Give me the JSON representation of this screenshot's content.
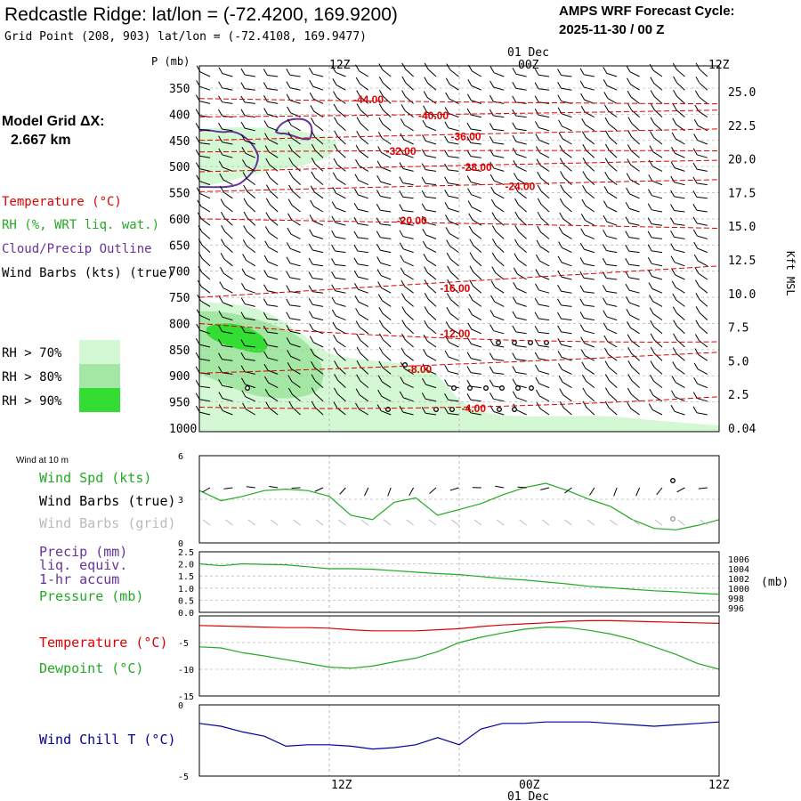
{
  "header": {
    "title": "Redcastle Ridge:  lat/lon = (-72.4200, 169.9200)",
    "subtitle": "Grid Point (208, 903) lat/lon = (-72.4108, 169.9477)",
    "cycle_line1": "AMPS WRF Forecast Cycle:",
    "cycle_line2": "2025-11-30 / 00  Z"
  },
  "time_axis": {
    "top_labels": [
      "12Z",
      "00Z",
      "12Z"
    ],
    "date_label": "01 Dec",
    "bottom_labels": [
      "12Z",
      "00Z",
      "12Z"
    ]
  },
  "legend": {
    "grid_label": "Model Grid ΔX:",
    "grid_value": "2.667 km",
    "temperature": "Temperature (°C)",
    "rh": "RH (%, WRT liq. wat.)",
    "cloud": "Cloud/Precip Outline",
    "wind": "Wind Barbs (kts) (true)",
    "rh70": "RH > 70%",
    "rh80": "RH > 80%",
    "rh90": "RH > 90%",
    "colors": {
      "temperature": "#dd0000",
      "rh": "#22aa22",
      "cloud": "#663399",
      "rh70": "#d4f7d4",
      "rh80": "#a4e6a4",
      "rh90": "#33dd33"
    }
  },
  "chart_data": [
    {
      "type": "contour",
      "name": "upper",
      "ylabel": "P (mb)",
      "right_label": "Kft MSL",
      "y_ticks_left": [
        "350",
        "400",
        "450",
        "500",
        "550",
        "600",
        "650",
        "700",
        "750",
        "800",
        "850",
        "900",
        "950",
        "1000"
      ],
      "y_ticks_right": [
        "25.0",
        "22.5",
        "20.0",
        "17.5",
        "15.0",
        "12.5",
        "10.0",
        "7.5",
        "5.0",
        "2.5",
        "0.04"
      ],
      "temperature_labels": [
        "-44.00",
        "-40.00",
        "-36.00",
        "-32.00",
        "-28.00",
        "-24.00",
        "-20.00",
        "-16.00",
        "-12.00",
        "-8.00",
        "-4.00"
      ],
      "temperature_contours": [
        {
          "label": "-44.00",
          "x": [
            0,
            24,
            48
          ],
          "p": [
            370,
            378,
            380
          ]
        },
        {
          "label": "-40.00",
          "x": [
            0,
            24,
            48
          ],
          "p": [
            405,
            401,
            392
          ]
        },
        {
          "label": "-36.00",
          "x": [
            0,
            24,
            48
          ],
          "p": [
            450,
            438,
            428
          ]
        },
        {
          "label": "-32.00",
          "x": [
            0,
            24,
            48
          ],
          "p": [
            472,
            468,
            470
          ]
        },
        {
          "label": "-28.00",
          "x": [
            0,
            24,
            48
          ],
          "p": [
            510,
            497,
            488
          ]
        },
        {
          "label": "-24.00",
          "x": [
            0,
            24,
            48
          ],
          "p": [
            548,
            535,
            525
          ]
        },
        {
          "label": "-20.00",
          "x": [
            0,
            24,
            48
          ],
          "p": [
            600,
            608,
            618
          ]
        },
        {
          "label": "-16.00",
          "x": [
            0,
            24,
            48
          ],
          "p": [
            750,
            720,
            690
          ]
        },
        {
          "label": "-12.00",
          "x": [
            0,
            24,
            48
          ],
          "p": [
            800,
            840,
            835
          ]
        },
        {
          "label": "-8.00",
          "x": [
            0,
            24,
            48
          ],
          "p": [
            895,
            880,
            855
          ]
        },
        {
          "label": "-4.00",
          "x": [
            0,
            24,
            48
          ],
          "p": [
            960,
            970,
            940
          ]
        }
      ]
    },
    {
      "type": "line",
      "name": "wind",
      "title": "Wind at 10 m",
      "series_labels": [
        "Wind Spd (kts)",
        "Wind Barbs (true)",
        "Wind Barbs (grid)"
      ],
      "y_ticks": [
        "6",
        "3",
        "0"
      ],
      "ylim": [
        0,
        6
      ],
      "x": [
        0,
        2,
        4,
        6,
        8,
        10,
        12,
        14,
        16,
        18,
        20,
        22,
        24,
        26,
        28,
        30,
        32,
        34,
        36,
        38,
        40,
        42,
        44,
        46,
        48
      ],
      "series": [
        {
          "name": "Wind Spd (kts)",
          "values": [
            3.6,
            2.9,
            3.2,
            3.6,
            3.7,
            3.6,
            3.2,
            1.9,
            1.6,
            2.8,
            3.1,
            1.9,
            2.3,
            2.7,
            3.3,
            3.8,
            4.1,
            3.6,
            3.0,
            2.5,
            1.6,
            1.0,
            0.9,
            1.2,
            1.6
          ]
        }
      ]
    },
    {
      "type": "line",
      "name": "precip",
      "series_labels": [
        "Precip (mm)",
        "liq. equiv.",
        "1-hr accum",
        "Pressure (mb)"
      ],
      "y_ticks": [
        "2.5",
        "2.0",
        "1.5",
        "1.0",
        "0.5",
        "0.0"
      ],
      "y_ticks_right": [
        "1006",
        "1004",
        "1002",
        "1000",
        "998",
        "996"
      ],
      "right_label": "(mb)",
      "ylim": [
        0,
        2.5
      ],
      "x": [
        0,
        2,
        4,
        6,
        8,
        10,
        12,
        14,
        16,
        18,
        20,
        22,
        24,
        26,
        28,
        30,
        32,
        34,
        36,
        38,
        40,
        42,
        44,
        46,
        48
      ],
      "series": [
        {
          "name": "Pressure (mb)",
          "values": [
            1005.0,
            1004.6,
            1005.0,
            1004.9,
            1004.8,
            1004.4,
            1004.0,
            1004.0,
            1003.9,
            1003.6,
            1003.3,
            1003.0,
            1002.8,
            1002.4,
            1002.0,
            1001.7,
            1001.3,
            1000.9,
            1000.4,
            1000.1,
            999.8,
            999.5,
            999.3,
            999.0,
            998.8
          ]
        }
      ]
    },
    {
      "type": "line",
      "name": "temperature",
      "series_labels": [
        "Temperature (°C)",
        "Dewpoint (°C)"
      ],
      "y_ticks": [
        "-5",
        "-10",
        "-15"
      ],
      "ylim": [
        -15,
        0
      ],
      "x": [
        0,
        2,
        4,
        6,
        8,
        10,
        12,
        14,
        16,
        18,
        20,
        22,
        24,
        26,
        28,
        30,
        32,
        34,
        36,
        38,
        40,
        42,
        44,
        46,
        48
      ],
      "series": [
        {
          "name": "Temperature (°C)",
          "values": [
            -1.8,
            -1.9,
            -2.0,
            -2.1,
            -2.2,
            -2.2,
            -2.3,
            -2.6,
            -2.8,
            -2.8,
            -2.8,
            -2.6,
            -2.4,
            -2.0,
            -1.7,
            -1.5,
            -1.3,
            -1.0,
            -0.9,
            -0.9,
            -1.0,
            -1.1,
            -1.2,
            -1.3,
            -1.4
          ]
        },
        {
          "name": "Dewpoint (°C)",
          "values": [
            -5.8,
            -6.0,
            -6.9,
            -7.5,
            -8.2,
            -8.9,
            -9.6,
            -9.8,
            -9.4,
            -8.6,
            -7.9,
            -6.7,
            -5.0,
            -4.0,
            -3.2,
            -2.5,
            -2.1,
            -2.2,
            -2.7,
            -3.4,
            -4.4,
            -5.8,
            -7.2,
            -8.9,
            -10.0
          ]
        }
      ]
    },
    {
      "type": "line",
      "name": "windchill",
      "series_labels": [
        "Wind Chill T (°C)"
      ],
      "y_ticks": [
        "0",
        "-5"
      ],
      "ylim": [
        -5,
        0
      ],
      "x": [
        0,
        2,
        4,
        6,
        8,
        10,
        12,
        14,
        16,
        18,
        20,
        22,
        24,
        26,
        28,
        30,
        32,
        34,
        36,
        38,
        40,
        42,
        44,
        46,
        48
      ],
      "series": [
        {
          "name": "Wind Chill T (°C)",
          "values": [
            -1.3,
            -1.5,
            -1.9,
            -2.2,
            -2.9,
            -2.8,
            -2.8,
            -2.9,
            -3.1,
            -3.0,
            -2.8,
            -2.3,
            -2.8,
            -1.7,
            -1.3,
            -1.3,
            -1.2,
            -1.2,
            -1.2,
            -1.3,
            -1.4,
            -1.5,
            -1.4,
            -1.3,
            -1.2
          ]
        }
      ]
    }
  ]
}
